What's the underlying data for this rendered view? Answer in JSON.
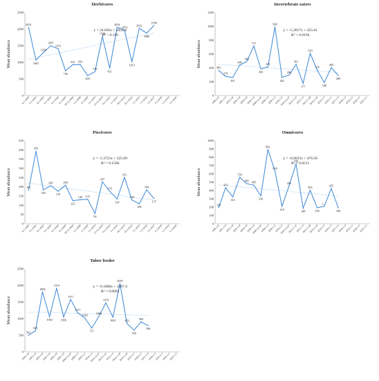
{
  "chart_data": [
    {
      "type": "line",
      "title": "Herbivores",
      "ylabel": "Mean abundance",
      "ylim": [
        0,
        2500
      ],
      "yticks": [
        "0",
        "500",
        "1000",
        "1500",
        "2000",
        "2500"
      ],
      "equation": "y = 34.656x + 1054.4",
      "r2": "R² = 0.116",
      "trend": [
        1089.1,
        1886.2
      ],
      "x": [
        "6-1-1999",
        "9-1-2001",
        "6-1-2002",
        "6-1-2003",
        "6-1-2004",
        "6-1-2005",
        "29-12-2006",
        "2-1-2008",
        "2-1-2009",
        "2-1-2010",
        "27-12-2010",
        "12-1-2012",
        "3-1-2013",
        "18-1-2013",
        "10-1-2014",
        "1-1-2015",
        "1-1-2016",
        "3-1-2017",
        "3-1-2018",
        "1-1-2019",
        "1-1-2020"
      ],
      "values": [
        2051,
        1067,
        1294,
        1497,
        1413,
        746,
        931,
        933,
        603,
        719,
        1778,
        821,
        2054,
        1972,
        1013,
        2022,
        1880,
        2108,
        null,
        null,
        null
      ],
      "labels": [
        "2051",
        "1067",
        "1294",
        "1497",
        "1413",
        "746",
        "931",
        "933",
        "603",
        "719",
        "1778",
        "821",
        "2054",
        "1972",
        "1013",
        "2022",
        "1880",
        "2108",
        "",
        "",
        ""
      ]
    },
    {
      "type": "line",
      "title": "Invertebrate eaters",
      "ylabel": "Mean abundance",
      "ylim": [
        0,
        1200
      ],
      "yticks": [
        "0",
        "200",
        "400",
        "600",
        "800",
        "1000",
        "1200"
      ],
      "equation": "y = -5.2817x + 455.61",
      "r2": "R² = 0.0194",
      "trend": [
        450.3,
        334.1
      ],
      "x": [
        "1999-1-6",
        "2001-1-9",
        "2002-1-6",
        "2003-1-6",
        "2004-1-6",
        "2005-1-6",
        "2006-12-29",
        "2008-1-2",
        "2009-1-2",
        "2010-1-2",
        "2010-12-27",
        "2012-1-12",
        "2013-1-3",
        "2013-1-18",
        "2014-1-10",
        "2015-1-1",
        "2016-1-1",
        "2017-1-3",
        "2018-1-3",
        "2019-1-1",
        "2020-1-1",
        "2021-1-1"
      ],
      "values": [
        363,
        278,
        261,
        440,
        492,
        717,
        385,
        413,
        990,
        262,
        296,
        451,
        177,
        610,
        370,
        188,
        403,
        289,
        null,
        null,
        null,
        null
      ],
      "labels": [
        "363",
        "278",
        "261",
        "440",
        "492",
        "717",
        "385",
        "413",
        "990",
        "262",
        "296",
        "451",
        "177",
        "610",
        "370",
        "188",
        "403",
        "289",
        "",
        "",
        "",
        ""
      ]
    },
    {
      "type": "line",
      "title": "Piscivores",
      "ylabel": "Mean abundance",
      "ylim": [
        0,
        450
      ],
      "yticks": [
        "0",
        "50",
        "100",
        "150",
        "200",
        "250",
        "300",
        "350",
        "400",
        "450"
      ],
      "equation": "y = -5.3723x + 225.09",
      "r2": "R² = 0.1566",
      "trend": [
        219.7,
        128.4
      ],
      "x": [
        "6-1-1999",
        "9-1-2001",
        "6-1-2002",
        "6-1-2003",
        "6-1-2004",
        "6-1-2005",
        "29-12-2006",
        "2-1-2008",
        "2-1-2009",
        "2-1-2010",
        "27-12-2010",
        "12-1-2012",
        "3-1-2013",
        "18-1-2013",
        "10-1-2014",
        "1-1-2015",
        "1-1-2016",
        "3-1-2017",
        "3-1-2018",
        "1-1-2019",
        "1-1-2020"
      ],
      "values": [
        181,
        393,
        183,
        206,
        176,
        209,
        125,
        130,
        133,
        56,
        227,
        176,
        134,
        251,
        129,
        108,
        184,
        137,
        null,
        null,
        null
      ],
      "labels": [
        "181",
        "393",
        "183",
        "206",
        "176",
        "209",
        "125",
        "130",
        "133",
        "56",
        "227",
        "176",
        "134",
        "251",
        "129",
        "108",
        "184",
        "137",
        "",
        "",
        ""
      ]
    },
    {
      "type": "line",
      "title": "Omnivores",
      "ylabel": "Mean abundance",
      "ylim": [
        0,
        1000
      ],
      "yticks": [
        "0",
        "100",
        "200",
        "300",
        "400",
        "500",
        "600",
        "700",
        "800",
        "900",
        "1000"
      ],
      "equation": "y = -8.0023x + 476.58",
      "r2": "R² = 0.0511",
      "trend": [
        468.6,
        332.5
      ],
      "x": [
        "1999-1-6",
        "2001-1-9",
        "2002-1-6",
        "2003-1-6",
        "2004-1-6",
        "2005-1-6",
        "2006-12-29",
        "2008-1-2",
        "2009-1-2",
        "2010-1-2",
        "2010-12-27",
        "2012-1-12",
        "2013-1-3",
        "2013-1-18",
        "2014-1-10",
        "2015-1-1",
        "2016-1-1",
        "2017-1-3",
        "2018-1-3",
        "2019-1-1",
        "2020-1-1",
        "2021-1-1"
      ],
      "values": [
        193,
        433,
        323,
        559,
        482,
        465,
        336,
        892,
        634,
        210,
        456,
        720,
        188,
        403,
        192,
        210,
        425,
        190,
        null,
        null,
        null,
        null
      ],
      "labels": [
        "193",
        "433",
        "323",
        "559",
        "482",
        "465",
        "336",
        "892",
        "634",
        "210",
        "456",
        "720",
        "188",
        "403",
        "192",
        "2…",
        "425",
        "190",
        "",
        "",
        "",
        ""
      ]
    },
    {
      "type": "line",
      "title": "Tuber feeder",
      "ylabel": "Mean abundance",
      "ylim": [
        0,
        2500
      ],
      "yticks": [
        "0",
        "500",
        "1000",
        "1500",
        "2000",
        "2500"
      ],
      "equation": "y = -6.1868x + 1207.4",
      "r2": "R² = 0.0092",
      "trend": [
        1201.2,
        1096.0
      ],
      "x": [
        "1999-1-6",
        "2001-1-9",
        "2002-1-6",
        "2003-1-6",
        "2004-1-6",
        "2005-1-6",
        "2006-12-29",
        "2008-1-2",
        "2009-1-2",
        "2010-1-2",
        "2010-12-27",
        "2012-1-12",
        "2013-1-3",
        "2013-1-18",
        "2014-1-10",
        "2015-1-1",
        "2016-1-1",
        "2017-1-3",
        "2018-1-3",
        "2019-1-1",
        "2020-1-1",
        "2021-1-1"
      ],
      "values": [
        501,
        635,
        1802,
        1063,
        1914,
        1056,
        1577,
        1177,
        1020,
        717,
        1068,
        1474,
        1045,
        2055,
        853,
        656,
        904,
        789,
        null,
        null,
        null,
        null
      ],
      "labels": [
        "501",
        "635",
        "1802",
        "1063",
        "1914",
        "1056",
        "1577",
        "1177",
        "1020",
        "717",
        "1068",
        "1474",
        "1045",
        "2055",
        "853",
        "656",
        "904",
        "789",
        "",
        "",
        "",
        ""
      ]
    }
  ]
}
